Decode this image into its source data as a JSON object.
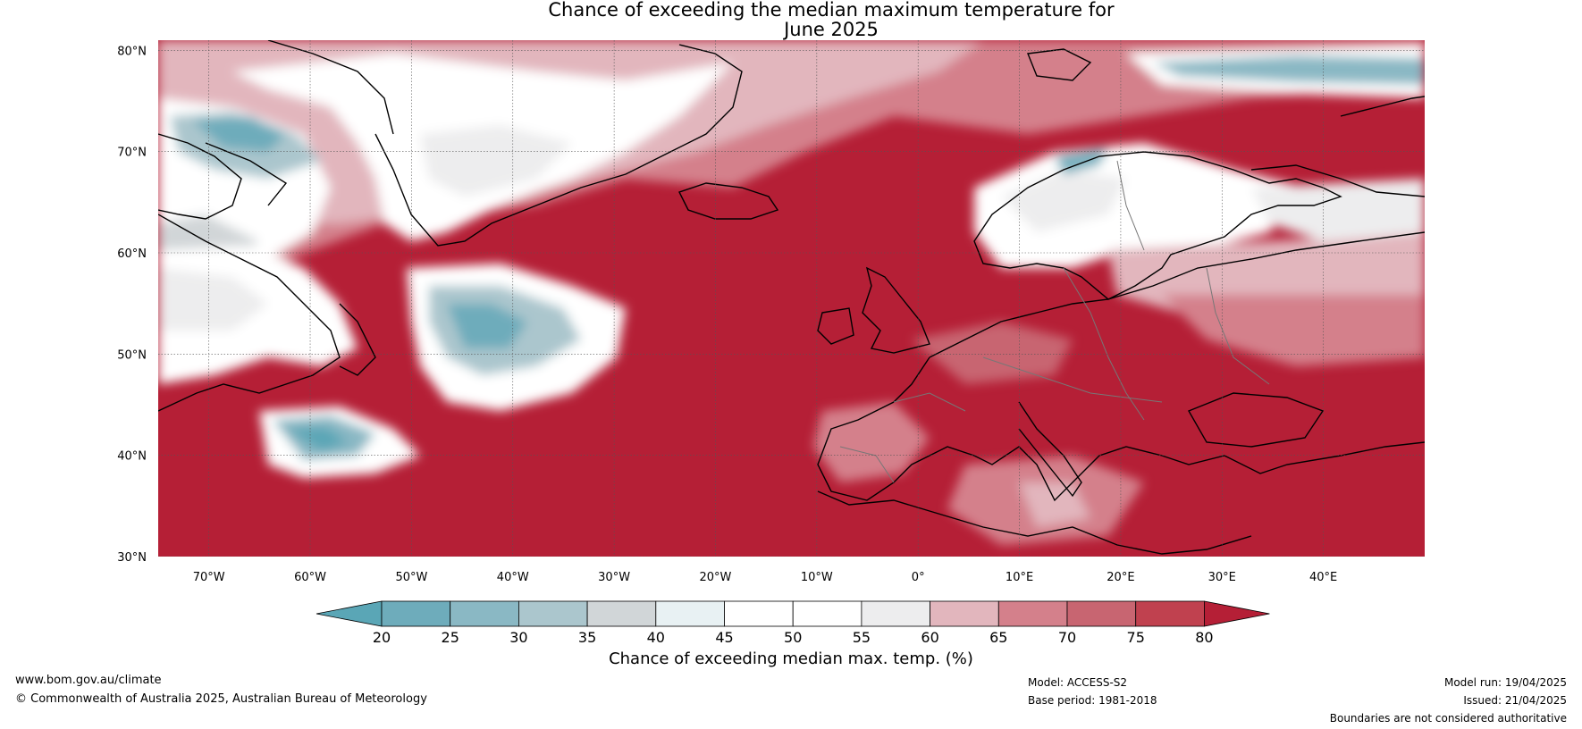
{
  "title": {
    "line1": "Chance of exceeding the median maximum temperature for",
    "line2": "June 2025"
  },
  "map": {
    "lat_ticks": [
      "80°N",
      "70°N",
      "60°N",
      "50°N",
      "40°N",
      "30°N"
    ],
    "lon_ticks": [
      "70°W",
      "60°W",
      "50°W",
      "40°W",
      "30°W",
      "20°W",
      "10°W",
      "0°",
      "10°E",
      "20°E",
      "30°E",
      "40°E"
    ],
    "extent": {
      "lon_min": -75,
      "lon_max": 50,
      "lat_min": 30,
      "lat_max": 81
    }
  },
  "colorbar": {
    "label": "Chance of exceeding median max. temp. (%)",
    "ticks": [
      "20",
      "25",
      "30",
      "35",
      "40",
      "45",
      "50",
      "55",
      "60",
      "65",
      "70",
      "75",
      "80"
    ],
    "colors": [
      "#5aa6b6",
      "#6eacbb",
      "#8ab8c4",
      "#abc6cd",
      "#d1d6d8",
      "#e8f1f3",
      "#ffffff",
      "#ffffff",
      "#ededee",
      "#e2b6bd",
      "#d4808b",
      "#c86571",
      "#c0414f",
      "#b51f36"
    ]
  },
  "footer": {
    "website": "www.bom.gov.au/climate",
    "copyright": "© Commonwealth of Australia 2025, Australian Bureau of Meteorology",
    "model": "Model: ACCESS-S2",
    "base_period": "Base period: 1981-2018",
    "model_run": "Model run: 19/04/2025",
    "issued": "Issued: 21/04/2025",
    "disclaimer": "Boundaries are not considered authoritative"
  }
}
